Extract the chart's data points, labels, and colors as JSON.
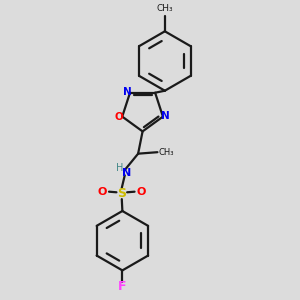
{
  "background_color": "#dcdcdc",
  "bond_color": "#1a1a1a",
  "atom_colors": {
    "N": "#0000ee",
    "O": "#ff0000",
    "S": "#ccbb00",
    "F": "#ff44ff",
    "H": "#448888"
  },
  "figsize": [
    3.0,
    3.0
  ],
  "dpi": 100
}
